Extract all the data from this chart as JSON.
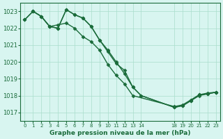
{
  "bg_color": "#d8f5f0",
  "grid_color": "#aaddcc",
  "line_color": "#1a6b3a",
  "marker_color": "#1a6b3a",
  "xlabel": "Graphe pression niveau de la mer (hPa)",
  "ylim": [
    1016.5,
    1023.5
  ],
  "xlim": [
    -0.5,
    23.5
  ],
  "yticks": [
    1017,
    1018,
    1019,
    1020,
    1021,
    1022,
    1023
  ],
  "xticks": [
    0,
    1,
    2,
    3,
    4,
    5,
    6,
    7,
    8,
    9,
    10,
    11,
    12,
    13,
    14,
    18,
    19,
    20,
    21,
    22,
    23
  ],
  "xtick_labels": [
    "0",
    "1",
    "2",
    "3",
    "4",
    "5",
    "6",
    "7",
    "8",
    "9",
    "10",
    "11",
    "12",
    "13",
    "14",
    "18",
    "19",
    "20",
    "21",
    "22",
    "23"
  ],
  "line1_x": [
    0,
    1,
    2,
    3,
    4,
    5,
    6,
    7,
    8,
    9,
    10,
    11,
    12,
    13,
    14,
    18,
    19,
    20,
    21,
    22,
    23
  ],
  "line1_y": [
    1022.5,
    1023.0,
    1022.7,
    1022.1,
    1022.0,
    1023.1,
    1022.8,
    1022.6,
    1022.1,
    1021.3,
    1020.6,
    1019.9,
    1019.5,
    1018.5,
    1018.0,
    1017.3,
    1017.4,
    1017.7,
    1018.0,
    1018.1,
    1018.2
  ],
  "line2_x": [
    0,
    1,
    2,
    3,
    4,
    5,
    6,
    7,
    8,
    9,
    10,
    11,
    12,
    13,
    14,
    18,
    19,
    20,
    21,
    22,
    23
  ],
  "line2_y": [
    1022.5,
    1023.0,
    1022.7,
    1022.1,
    1022.0,
    1023.1,
    1022.8,
    1022.6,
    1022.1,
    1021.3,
    1020.7,
    1020.0,
    1019.3,
    1018.5,
    1018.0,
    1017.3,
    1017.4,
    1017.7,
    1018.05,
    1018.1,
    1018.2
  ],
  "line3_x": [
    1,
    2,
    3,
    4,
    5,
    6,
    7,
    8,
    9,
    10,
    11,
    12,
    13,
    18,
    19,
    20,
    21,
    22,
    23
  ],
  "line3_y": [
    1023.0,
    1022.7,
    1022.1,
    1022.2,
    1022.3,
    1022.0,
    1021.5,
    1021.2,
    1020.7,
    1019.85,
    1019.2,
    1018.7,
    1018.0,
    1017.35,
    1017.45,
    1017.75,
    1018.05,
    1018.15,
    1018.2
  ]
}
